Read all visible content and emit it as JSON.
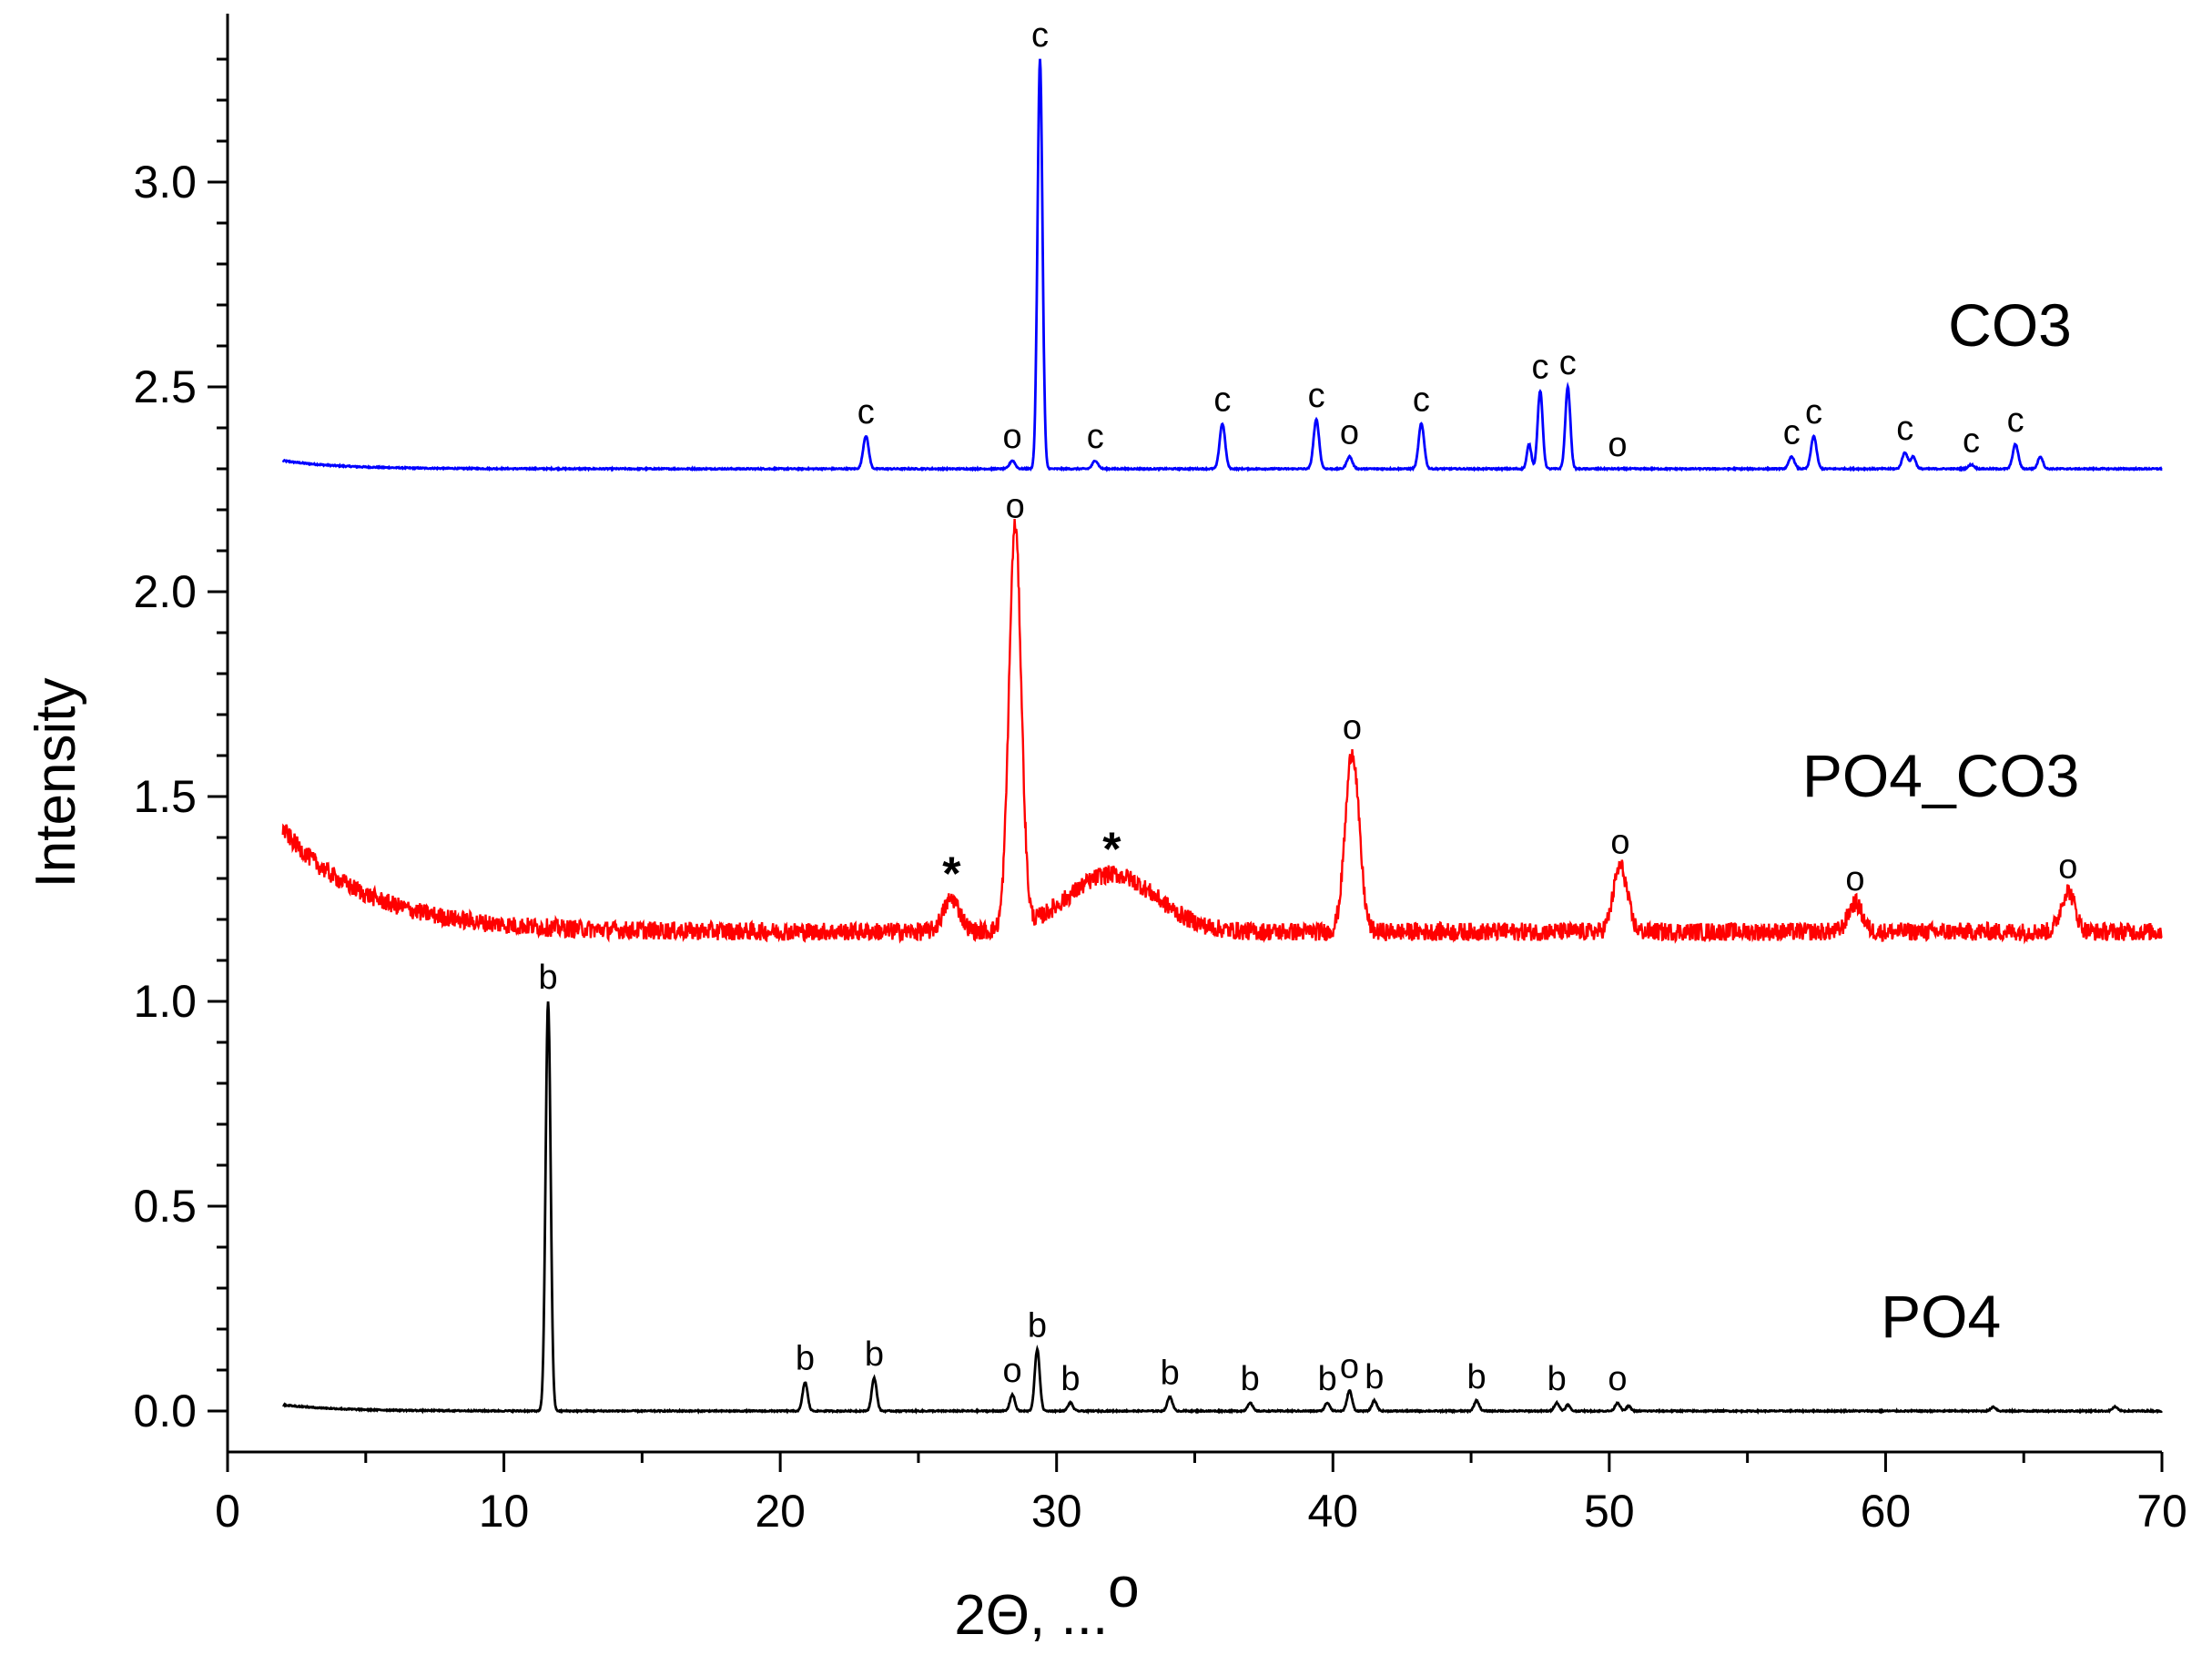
{
  "chart_data": {
    "type": "line",
    "xlabel": "2Θ, ...",
    "xlabel_sup": "o",
    "ylabel": "Intensity",
    "xlim": [
      0,
      70
    ],
    "ylim": [
      -0.1,
      3.4
    ],
    "xticks": [
      0,
      10,
      20,
      30,
      40,
      50,
      60,
      70
    ],
    "xtick_labels": [
      "0",
      "10",
      "20",
      "30",
      "40",
      "50",
      "60",
      "70"
    ],
    "yticks": [
      0.0,
      0.5,
      1.0,
      1.5,
      2.0,
      2.5,
      3.0
    ],
    "ytick_labels": [
      "0.0",
      "0.5",
      "1.0",
      "1.5",
      "2.0",
      "2.5",
      "3.0"
    ],
    "grid": false,
    "legend": "none",
    "series": [
      {
        "name": "CO3",
        "color": "#0000ff",
        "baseline": 2.3,
        "start_level": 2.32,
        "noise": 0.0015,
        "peaks": [
          {
            "x": 23.1,
            "y": 2.38,
            "w": 0.1,
            "label": "c"
          },
          {
            "x": 28.4,
            "y": 2.32,
            "w": 0.1,
            "label": "o"
          },
          {
            "x": 29.4,
            "y": 3.3,
            "w": 0.09,
            "label": "c"
          },
          {
            "x": 31.4,
            "y": 2.32,
            "w": 0.1,
            "label": "c"
          },
          {
            "x": 36.0,
            "y": 2.41,
            "w": 0.1,
            "label": "c"
          },
          {
            "x": 39.4,
            "y": 2.42,
            "w": 0.1,
            "label": "c"
          },
          {
            "x": 40.6,
            "y": 2.33,
            "w": 0.1,
            "label": "o"
          },
          {
            "x": 43.2,
            "y": 2.41,
            "w": 0.1,
            "label": "c"
          },
          {
            "x": 47.1,
            "y": 2.36,
            "w": 0.08,
            "label": ""
          },
          {
            "x": 47.5,
            "y": 2.49,
            "w": 0.09,
            "label": "c"
          },
          {
            "x": 48.5,
            "y": 2.5,
            "w": 0.09,
            "label": "c"
          },
          {
            "x": 50.3,
            "y": 2.3,
            "w": 0.1,
            "label": "o"
          },
          {
            "x": 56.6,
            "y": 2.33,
            "w": 0.1,
            "label": "c"
          },
          {
            "x": 57.4,
            "y": 2.38,
            "w": 0.1,
            "label": "c"
          },
          {
            "x": 60.7,
            "y": 2.34,
            "w": 0.1,
            "label": "c"
          },
          {
            "x": 61.0,
            "y": 2.33,
            "w": 0.09,
            "label": ""
          },
          {
            "x": 63.1,
            "y": 2.31,
            "w": 0.1,
            "label": "c"
          },
          {
            "x": 64.7,
            "y": 2.36,
            "w": 0.1,
            "label": "c"
          },
          {
            "x": 65.6,
            "y": 2.33,
            "w": 0.09,
            "label": ""
          }
        ]
      },
      {
        "name": "PO4_CO3",
        "color": "#ff0000",
        "baseline": 1.17,
        "start_level": 1.42,
        "noise": 0.014,
        "peaks": [
          {
            "x": 26.2,
            "y": 1.25,
            "w": 0.3,
            "label": "*"
          },
          {
            "x": 28.5,
            "y": 2.15,
            "w": 0.22,
            "label": "o"
          },
          {
            "x": 32.0,
            "y": 1.31,
            "w": 1.6,
            "label": "*"
          },
          {
            "x": 40.7,
            "y": 1.61,
            "w": 0.25,
            "label": "o"
          },
          {
            "x": 50.4,
            "y": 1.33,
            "w": 0.25,
            "label": "o"
          },
          {
            "x": 58.9,
            "y": 1.24,
            "w": 0.25,
            "label": "o"
          },
          {
            "x": 66.6,
            "y": 1.27,
            "w": 0.25,
            "label": "o"
          }
        ]
      },
      {
        "name": "PO4",
        "color": "#000000",
        "baseline": 0.0,
        "start_level": 0.015,
        "noise": 0.0015,
        "peaks": [
          {
            "x": 11.6,
            "y": 1.0,
            "w": 0.09,
            "label": "b"
          },
          {
            "x": 20.9,
            "y": 0.07,
            "w": 0.09,
            "label": "b"
          },
          {
            "x": 23.4,
            "y": 0.08,
            "w": 0.09,
            "label": "b"
          },
          {
            "x": 28.4,
            "y": 0.04,
            "w": 0.09,
            "label": "o"
          },
          {
            "x": 29.3,
            "y": 0.15,
            "w": 0.09,
            "label": "b"
          },
          {
            "x": 30.5,
            "y": 0.02,
            "w": 0.09,
            "label": "b"
          },
          {
            "x": 34.1,
            "y": 0.035,
            "w": 0.09,
            "label": "b"
          },
          {
            "x": 37.0,
            "y": 0.02,
            "w": 0.09,
            "label": "b"
          },
          {
            "x": 39.8,
            "y": 0.02,
            "w": 0.09,
            "label": "b"
          },
          {
            "x": 40.6,
            "y": 0.05,
            "w": 0.09,
            "label": "o"
          },
          {
            "x": 41.5,
            "y": 0.025,
            "w": 0.09,
            "label": "b"
          },
          {
            "x": 45.2,
            "y": 0.025,
            "w": 0.09,
            "label": "b"
          },
          {
            "x": 48.1,
            "y": 0.02,
            "w": 0.09,
            "label": "b"
          },
          {
            "x": 48.5,
            "y": 0.015,
            "w": 0.08,
            "label": ""
          },
          {
            "x": 50.3,
            "y": 0.02,
            "w": 0.09,
            "label": "o"
          },
          {
            "x": 50.7,
            "y": 0.012,
            "w": 0.08,
            "label": ""
          },
          {
            "x": 63.9,
            "y": 0.01,
            "w": 0.09,
            "label": ""
          },
          {
            "x": 68.3,
            "y": 0.01,
            "w": 0.09,
            "label": ""
          }
        ]
      }
    ],
    "series_labels": [
      {
        "text": "CO3",
        "x": 64.5,
        "y": 2.6
      },
      {
        "text": "PO4_CO3",
        "x": 62.0,
        "y": 1.5
      },
      {
        "text": "PO4",
        "x": 62.0,
        "y": 0.18
      }
    ]
  }
}
